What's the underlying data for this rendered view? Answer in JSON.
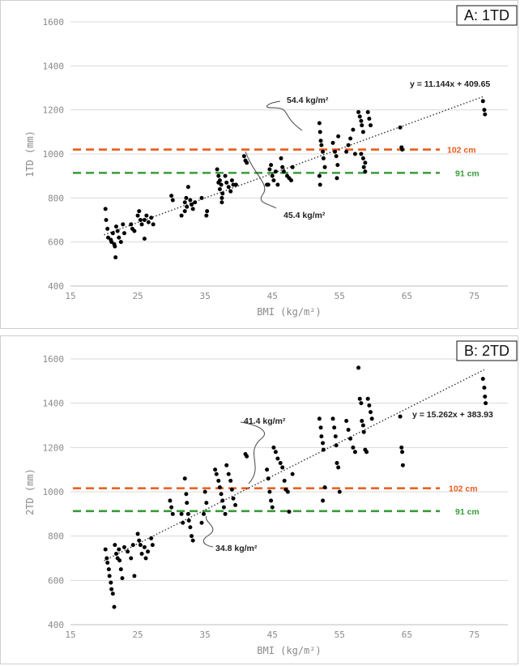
{
  "chart_data": [
    {
      "type": "scatter",
      "panel_label": "A: 1TD",
      "xlabel": "BMI (kg/m²)",
      "ylabel": "1TD (mm)",
      "xlim": [
        15,
        80
      ],
      "ylim": [
        400,
        1600
      ],
      "xticks": [
        15,
        25,
        35,
        45,
        55,
        65,
        75
      ],
      "yticks": [
        400,
        600,
        800,
        1000,
        1200,
        1400,
        1600
      ],
      "grid": "horizontal",
      "trendline": {
        "equation": "y = 11.144x + 409.65",
        "slope": 11.144,
        "intercept": 409.65,
        "x_range": [
          20,
          76.5
        ]
      },
      "reference_lines": [
        {
          "y": 1020,
          "label": "102 cm",
          "color": "#ea5b1c"
        },
        {
          "y": 914,
          "label": "91 cm",
          "color": "#3a9a3a"
        }
      ],
      "annotations": [
        {
          "text": "54.4 kg/m²"
        },
        {
          "text": "45.4 kg/m²"
        }
      ],
      "points": [
        [
          20.2,
          750
        ],
        [
          20.3,
          700
        ],
        [
          20.5,
          660
        ],
        [
          20.6,
          620
        ],
        [
          21,
          610
        ],
        [
          21.1,
          600
        ],
        [
          21.3,
          640
        ],
        [
          21.5,
          590
        ],
        [
          21.6,
          580
        ],
        [
          21.7,
          530
        ],
        [
          21.8,
          670
        ],
        [
          22,
          650
        ],
        [
          22.2,
          620
        ],
        [
          22.5,
          600
        ],
        [
          22.8,
          680
        ],
        [
          23,
          640
        ],
        [
          24,
          680
        ],
        [
          24.2,
          660
        ],
        [
          24.5,
          650
        ],
        [
          25,
          720
        ],
        [
          25.2,
          740
        ],
        [
          25.4,
          700
        ],
        [
          25.6,
          680
        ],
        [
          26,
          615
        ],
        [
          26,
          700
        ],
        [
          26.3,
          720
        ],
        [
          26.6,
          690
        ],
        [
          27,
          710
        ],
        [
          27.3,
          680
        ],
        [
          30,
          810
        ],
        [
          30.2,
          790
        ],
        [
          31.5,
          720
        ],
        [
          32,
          740
        ],
        [
          32,
          780
        ],
        [
          32.2,
          800
        ],
        [
          32.3,
          760
        ],
        [
          32.5,
          850
        ],
        [
          32.8,
          790
        ],
        [
          33,
          770
        ],
        [
          33.2,
          750
        ],
        [
          33.5,
          780
        ],
        [
          34.5,
          800
        ],
        [
          35.2,
          720
        ],
        [
          35.3,
          740
        ],
        [
          36.8,
          930
        ],
        [
          37,
          900
        ],
        [
          37,
          870
        ],
        [
          37.2,
          880
        ],
        [
          37.2,
          840
        ],
        [
          37.4,
          860
        ],
        [
          37.5,
          800
        ],
        [
          37.5,
          780
        ],
        [
          37.6,
          820
        ],
        [
          38,
          900
        ],
        [
          38.2,
          870
        ],
        [
          38.5,
          850
        ],
        [
          38.8,
          830
        ],
        [
          39,
          880
        ],
        [
          39.2,
          860
        ],
        [
          39.6,
          860
        ],
        [
          40.8,
          990
        ],
        [
          41,
          970
        ],
        [
          41.2,
          960
        ],
        [
          44.2,
          860
        ],
        [
          44.4,
          860
        ],
        [
          44.6,
          930
        ],
        [
          44.8,
          950
        ],
        [
          45,
          900
        ],
        [
          45.2,
          880
        ],
        [
          45.5,
          920
        ],
        [
          45.8,
          860
        ],
        [
          46.3,
          980
        ],
        [
          46.5,
          940
        ],
        [
          46.7,
          920
        ],
        [
          47.2,
          900
        ],
        [
          47.5,
          890
        ],
        [
          47.8,
          880
        ],
        [
          48,
          940
        ],
        [
          52,
          1140
        ],
        [
          52.1,
          1100
        ],
        [
          52.2,
          1060
        ],
        [
          52.3,
          1040
        ],
        [
          52.5,
          1010
        ],
        [
          52.6,
          980
        ],
        [
          52.8,
          940
        ],
        [
          52,
          900
        ],
        [
          52.1,
          860
        ],
        [
          54,
          1050
        ],
        [
          54.3,
          1010
        ],
        [
          54.5,
          990
        ],
        [
          54.7,
          950
        ],
        [
          54.6,
          890
        ],
        [
          54.8,
          1080
        ],
        [
          56,
          1010
        ],
        [
          56.3,
          1040
        ],
        [
          56.6,
          1070
        ],
        [
          57,
          1110
        ],
        [
          57.3,
          1000
        ],
        [
          57.8,
          1190
        ],
        [
          58,
          1170
        ],
        [
          58.2,
          1150
        ],
        [
          58.3,
          1130
        ],
        [
          58.5,
          1100
        ],
        [
          58.2,
          1000
        ],
        [
          58.5,
          980
        ],
        [
          58.8,
          960
        ],
        [
          58.6,
          940
        ],
        [
          58.8,
          920
        ],
        [
          59.2,
          1190
        ],
        [
          59.4,
          1160
        ],
        [
          59.6,
          1130
        ],
        [
          64,
          1120
        ],
        [
          64.2,
          1030
        ],
        [
          64.3,
          1020
        ],
        [
          76.3,
          1240
        ],
        [
          76.5,
          1200
        ],
        [
          76.6,
          1180
        ]
      ]
    },
    {
      "type": "scatter",
      "panel_label": "B: 2TD",
      "xlabel": "BMI (kg/m²)",
      "ylabel": "2TD (mm)",
      "xlim": [
        15,
        80
      ],
      "ylim": [
        400,
        1600
      ],
      "xticks": [
        15,
        25,
        35,
        45,
        55,
        65,
        75
      ],
      "yticks": [
        400,
        600,
        800,
        1000,
        1200,
        1400,
        1600
      ],
      "grid": "horizontal",
      "trendline": {
        "equation": "y = 15.262x + 383.93",
        "slope": 15.262,
        "intercept": 383.93,
        "x_range": [
          20,
          76.5
        ]
      },
      "reference_lines": [
        {
          "y": 1016,
          "label": "102 cm",
          "color": "#ea5b1c"
        },
        {
          "y": 913,
          "label": "91 cm",
          "color": "#3a9a3a"
        }
      ],
      "annotations": [
        {
          "text": "41.4 kg/m²"
        },
        {
          "text": "34.8 kg/m²"
        }
      ],
      "points": [
        [
          20.2,
          740
        ],
        [
          20.4,
          700
        ],
        [
          20.5,
          680
        ],
        [
          20.7,
          650
        ],
        [
          20.8,
          620
        ],
        [
          21,
          590
        ],
        [
          21.1,
          560
        ],
        [
          21.3,
          540
        ],
        [
          21.5,
          480
        ],
        [
          21.6,
          760
        ],
        [
          21.8,
          720
        ],
        [
          22,
          700
        ],
        [
          22.2,
          740
        ],
        [
          22.3,
          690
        ],
        [
          22.5,
          650
        ],
        [
          22.7,
          610
        ],
        [
          23,
          750
        ],
        [
          23.5,
          730
        ],
        [
          24,
          700
        ],
        [
          24.3,
          760
        ],
        [
          24.5,
          620
        ],
        [
          25,
          810
        ],
        [
          25.2,
          780
        ],
        [
          25.4,
          760
        ],
        [
          25.6,
          720
        ],
        [
          26,
          750
        ],
        [
          26.2,
          700
        ],
        [
          26.5,
          730
        ],
        [
          27,
          790
        ],
        [
          27.2,
          760
        ],
        [
          29.8,
          960
        ],
        [
          30,
          930
        ],
        [
          30.2,
          900
        ],
        [
          31.5,
          900
        ],
        [
          31.7,
          860
        ],
        [
          32,
          1060
        ],
        [
          32.2,
          990
        ],
        [
          32.3,
          950
        ],
        [
          32.5,
          900
        ],
        [
          32.6,
          870
        ],
        [
          32.8,
          840
        ],
        [
          33,
          800
        ],
        [
          33.2,
          780
        ],
        [
          34.5,
          860
        ],
        [
          34.8,
          900
        ],
        [
          35,
          1000
        ],
        [
          35.2,
          950
        ],
        [
          36.5,
          1100
        ],
        [
          36.7,
          1080
        ],
        [
          37,
          1050
        ],
        [
          37.2,
          1020
        ],
        [
          37.4,
          990
        ],
        [
          37.6,
          960
        ],
        [
          37.8,
          930
        ],
        [
          38,
          900
        ],
        [
          38.2,
          1120
        ],
        [
          38.5,
          1080
        ],
        [
          38.8,
          1050
        ],
        [
          39,
          1010
        ],
        [
          39.2,
          970
        ],
        [
          39.5,
          940
        ],
        [
          41,
          1170
        ],
        [
          41.2,
          1160
        ],
        [
          44.2,
          1100
        ],
        [
          44.4,
          1060
        ],
        [
          44.6,
          1000
        ],
        [
          44.8,
          960
        ],
        [
          45,
          930
        ],
        [
          45.2,
          1200
        ],
        [
          45.5,
          1180
        ],
        [
          45.8,
          1150
        ],
        [
          46.2,
          1130
        ],
        [
          46.5,
          1110
        ],
        [
          46.8,
          1050
        ],
        [
          47,
          1010
        ],
        [
          47.3,
          1000
        ],
        [
          47.5,
          910
        ],
        [
          48,
          1080
        ],
        [
          52,
          1330
        ],
        [
          52.2,
          1290
        ],
        [
          52.3,
          1250
        ],
        [
          52.5,
          1220
        ],
        [
          52.6,
          1190
        ],
        [
          52.8,
          1020
        ],
        [
          52.5,
          960
        ],
        [
          54,
          1330
        ],
        [
          54.2,
          1290
        ],
        [
          54.4,
          1250
        ],
        [
          54.5,
          1210
        ],
        [
          54.6,
          1130
        ],
        [
          54.8,
          1110
        ],
        [
          55,
          1000
        ],
        [
          56,
          1320
        ],
        [
          56.3,
          1280
        ],
        [
          56.6,
          1240
        ],
        [
          57,
          1200
        ],
        [
          57.3,
          1180
        ],
        [
          57.8,
          1560
        ],
        [
          58,
          1420
        ],
        [
          58.2,
          1400
        ],
        [
          58.3,
          1320
        ],
        [
          58.5,
          1300
        ],
        [
          58.6,
          1270
        ],
        [
          58.8,
          1190
        ],
        [
          59,
          1180
        ],
        [
          59.2,
          1420
        ],
        [
          59.4,
          1390
        ],
        [
          59.6,
          1360
        ],
        [
          59.8,
          1330
        ],
        [
          64,
          1340
        ],
        [
          64.2,
          1200
        ],
        [
          64.3,
          1180
        ],
        [
          64.4,
          1120
        ],
        [
          76.3,
          1510
        ],
        [
          76.5,
          1470
        ],
        [
          76.6,
          1430
        ],
        [
          76.7,
          1400
        ]
      ]
    }
  ]
}
